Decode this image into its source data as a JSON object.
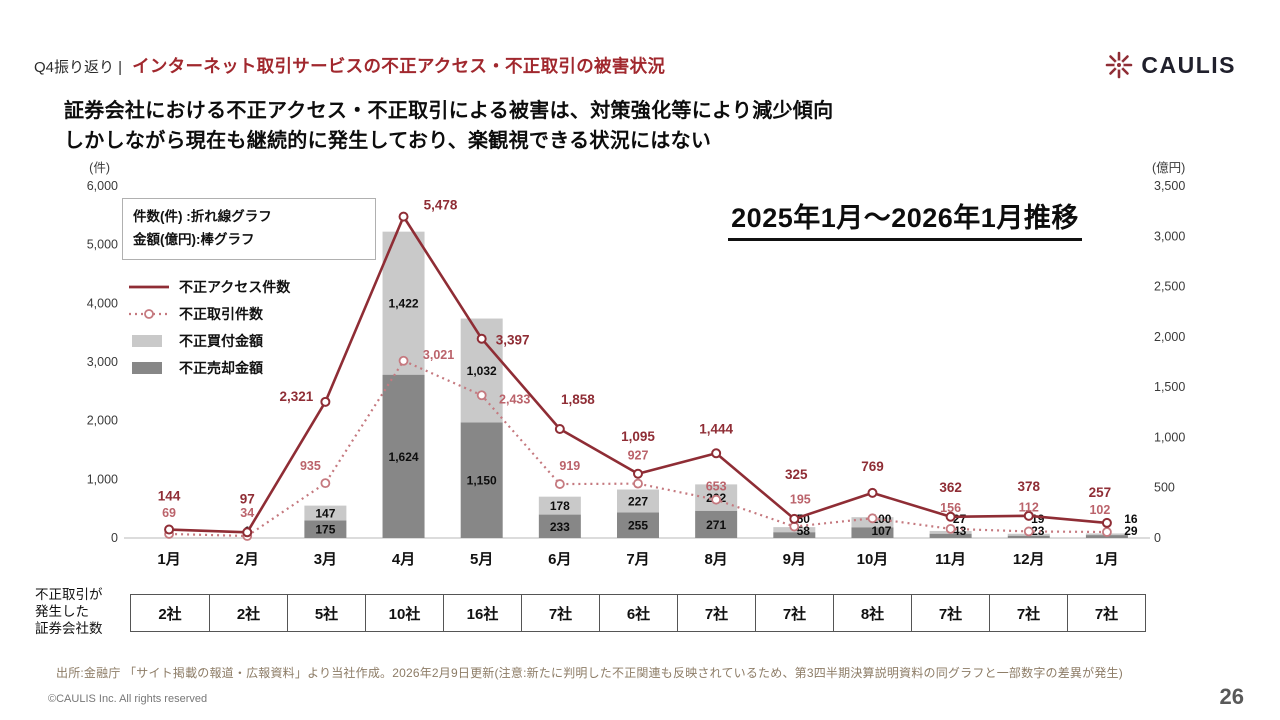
{
  "header": {
    "prefix": "Q4振り返り |",
    "title": "インターネット取引サービスの不正アクセス・不正取引の被害状況"
  },
  "logo": {
    "text": "CAULIS"
  },
  "subtitle": {
    "line1": "証券会社における不正アクセス・不正取引による被害は、対策強化等により減少傾向",
    "line2": "しかしながら現在も継続的に発生しており、楽観視できる状況にはない"
  },
  "legend": {
    "box_line1": "件数(件) :折れ線グラフ",
    "box_line2": "金額(億円):棒グラフ",
    "items": [
      {
        "name": "不正アクセス件数",
        "type": "line-solid",
        "color": "#8f2d35",
        "icon": "solid-line-icon"
      },
      {
        "name": "不正取引件数",
        "type": "line-dotted",
        "color": "#c5797f",
        "icon": "dotted-line-icon"
      },
      {
        "name": "不正買付金額",
        "type": "swatch",
        "color": "#c9c9c9",
        "icon": "light-gray-swatch-icon"
      },
      {
        "name": "不正売却金額",
        "type": "swatch",
        "color": "#878787",
        "icon": "dark-gray-swatch-icon"
      }
    ]
  },
  "chart_data": {
    "type": "combo",
    "title": "2025年1月〜2026年1月推移",
    "categories": [
      "1月",
      "2月",
      "3月",
      "4月",
      "5月",
      "6月",
      "7月",
      "8月",
      "9月",
      "10月",
      "11月",
      "12月",
      "1月"
    ],
    "left_axis": {
      "label": "(件)",
      "min": 0,
      "max": 6000,
      "ticks": [
        "6,000",
        "5,000",
        "4,000",
        "3,000",
        "2,000",
        "1,000",
        "0"
      ]
    },
    "right_axis": {
      "label": "(億円)",
      "min": 0,
      "max": 3500,
      "ticks": [
        "3,500",
        "3,000",
        "2,500",
        "2,000",
        "1,500",
        "1,000",
        "500",
        "0"
      ]
    },
    "series": [
      {
        "name": "不正アクセス件数",
        "type": "line",
        "style": "solid",
        "axis": "left",
        "color": "#8f2d35",
        "values": [
          144,
          97,
          2321,
          5478,
          3397,
          1858,
          1095,
          1444,
          325,
          769,
          362,
          378,
          257
        ],
        "labels": [
          "144",
          "97",
          "2,321",
          "5,478",
          "3,397",
          "1,858",
          "1,095",
          "1,444",
          "325",
          "769",
          "362",
          "378",
          "257"
        ]
      },
      {
        "name": "不正取引件数",
        "type": "line",
        "style": "dotted",
        "axis": "left",
        "color": "#c5797f",
        "values": [
          69,
          34,
          935,
          3021,
          2433,
          919,
          927,
          653,
          195,
          336,
          156,
          112,
          102
        ],
        "labels": [
          "69",
          "34",
          "935",
          "3,021",
          "2,433",
          "919",
          "927",
          "653",
          "195",
          "",
          "156",
          "112",
          "102"
        ]
      },
      {
        "name": "不正買付金額",
        "type": "bar",
        "axis": "right",
        "color": "#c9c9c9",
        "values": [
          0,
          0,
          147,
          1422,
          1032,
          178,
          227,
          262,
          50,
          100,
          27,
          19,
          16
        ],
        "labels": [
          "",
          "",
          "147",
          "1,422",
          "1,032",
          "178",
          "227",
          "262",
          "50",
          "100",
          "27",
          "19",
          "16"
        ]
      },
      {
        "name": "不正売却金額",
        "type": "bar",
        "axis": "right",
        "color": "#878787",
        "values": [
          2,
          1,
          175,
          1624,
          1150,
          233,
          255,
          271,
          58,
          107,
          43,
          23,
          29
        ],
        "labels": [
          "2",
          "1",
          "175",
          "1,624",
          "1,150",
          "233",
          "255",
          "271",
          "58",
          "107",
          "43",
          "23",
          "29"
        ]
      }
    ]
  },
  "companies": {
    "label": "不正取引が\n発生した\n証券会社数",
    "values": [
      "2社",
      "2社",
      "5社",
      "10社",
      "16社",
      "7社",
      "6社",
      "7社",
      "7社",
      "8社",
      "7社",
      "7社",
      "7社"
    ]
  },
  "source": "出所:金融庁 「サイト掲載の報道・広報資料」より当社作成。2026年2月9日更新(注意:新たに判明した不正関連も反映されているため、第3四半期決算説明資料の同グラフと一部数字の差異が発生)",
  "footer": {
    "copyright": "©CAULIS Inc. All rights reserved",
    "page": "26"
  }
}
